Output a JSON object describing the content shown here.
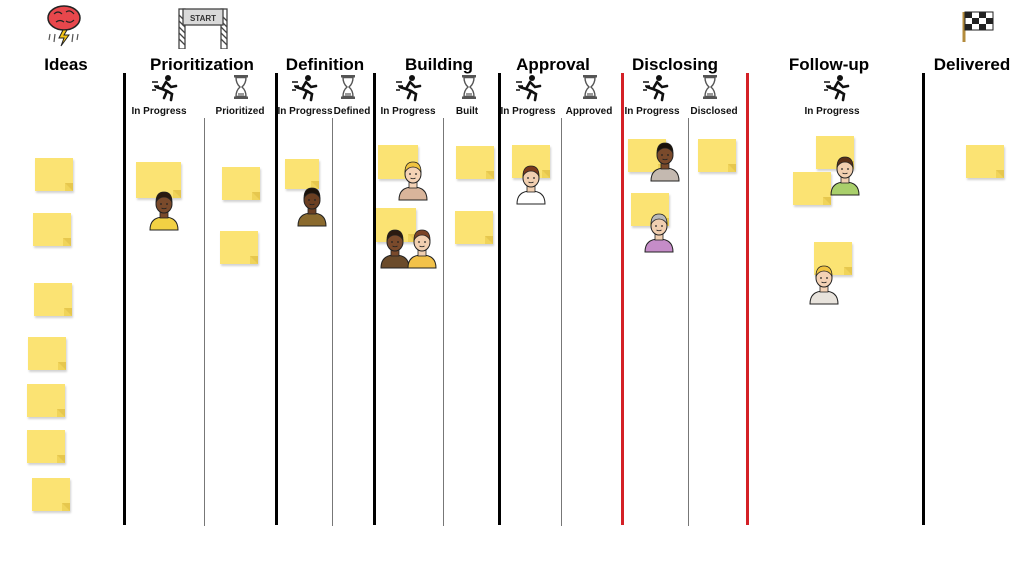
{
  "stages": {
    "ideas": "Ideas",
    "prioritization": "Prioritization",
    "definition": "Definition",
    "building": "Building",
    "approval": "Approval",
    "disclosing": "Disclosing",
    "followup": "Follow-up",
    "delivered": "Delivered"
  },
  "gate_label": "START",
  "sub": {
    "prio_inprogress": "In Progress",
    "prio_prioritized": "Prioritized",
    "def_inprogress": "In Progress",
    "def_defined": "Defined",
    "build_inprogress": "In Progress",
    "build_built": "Built",
    "appr_inprogress": "In Progress",
    "appr_approved": "Approved",
    "disc_inprogress": "In Progress",
    "disc_disclosed": "Disclosed",
    "follow_inprogress": "In Progress"
  },
  "icons": {
    "in_progress": "running-person-icon",
    "done": "hourglass-icon",
    "ideas": "brain-storm-icon",
    "start": "start-gate-icon",
    "finish": "checkered-flag-icon"
  },
  "colors": {
    "note": "#fbe373",
    "wip_limit_line": "#d42026",
    "column_line": "#000000"
  }
}
